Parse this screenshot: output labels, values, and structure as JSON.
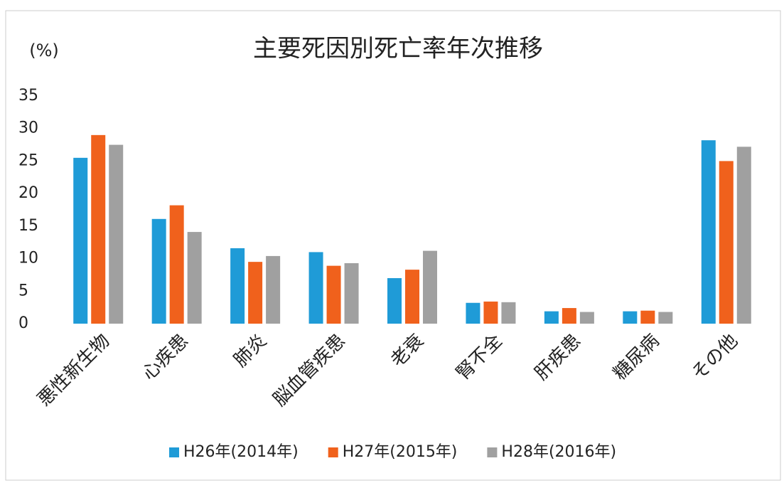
{
  "chart_data": {
    "type": "bar",
    "title": "主要死因別死亡率年次推移",
    "ylabel": "(%)",
    "categories": [
      "悪性新生物",
      "心疾患",
      "肺炎",
      "脳血管疾患",
      "老衰",
      "腎不全",
      "肝疾患",
      "糖尿病",
      "その他"
    ],
    "series": [
      {
        "name": "H26年(2014年)",
        "color": "#1f9bd7",
        "values": [
          25.5,
          16.1,
          11.6,
          11.0,
          7.0,
          3.2,
          1.9,
          1.9,
          28.2
        ]
      },
      {
        "name": "H27年(2015年)",
        "color": "#f0611c",
        "values": [
          29.0,
          18.2,
          9.5,
          8.9,
          8.3,
          3.4,
          2.4,
          2.0,
          25.0
        ]
      },
      {
        "name": "H28年(2016年)",
        "color": "#a0a0a0",
        "values": [
          27.5,
          14.1,
          10.4,
          9.3,
          11.2,
          3.3,
          1.8,
          1.8,
          27.2
        ]
      }
    ],
    "ylim": [
      0,
      35
    ],
    "yticks": [
      0,
      5,
      10,
      15,
      20,
      25,
      30,
      35
    ],
    "grid": false,
    "legend": "bottom"
  }
}
